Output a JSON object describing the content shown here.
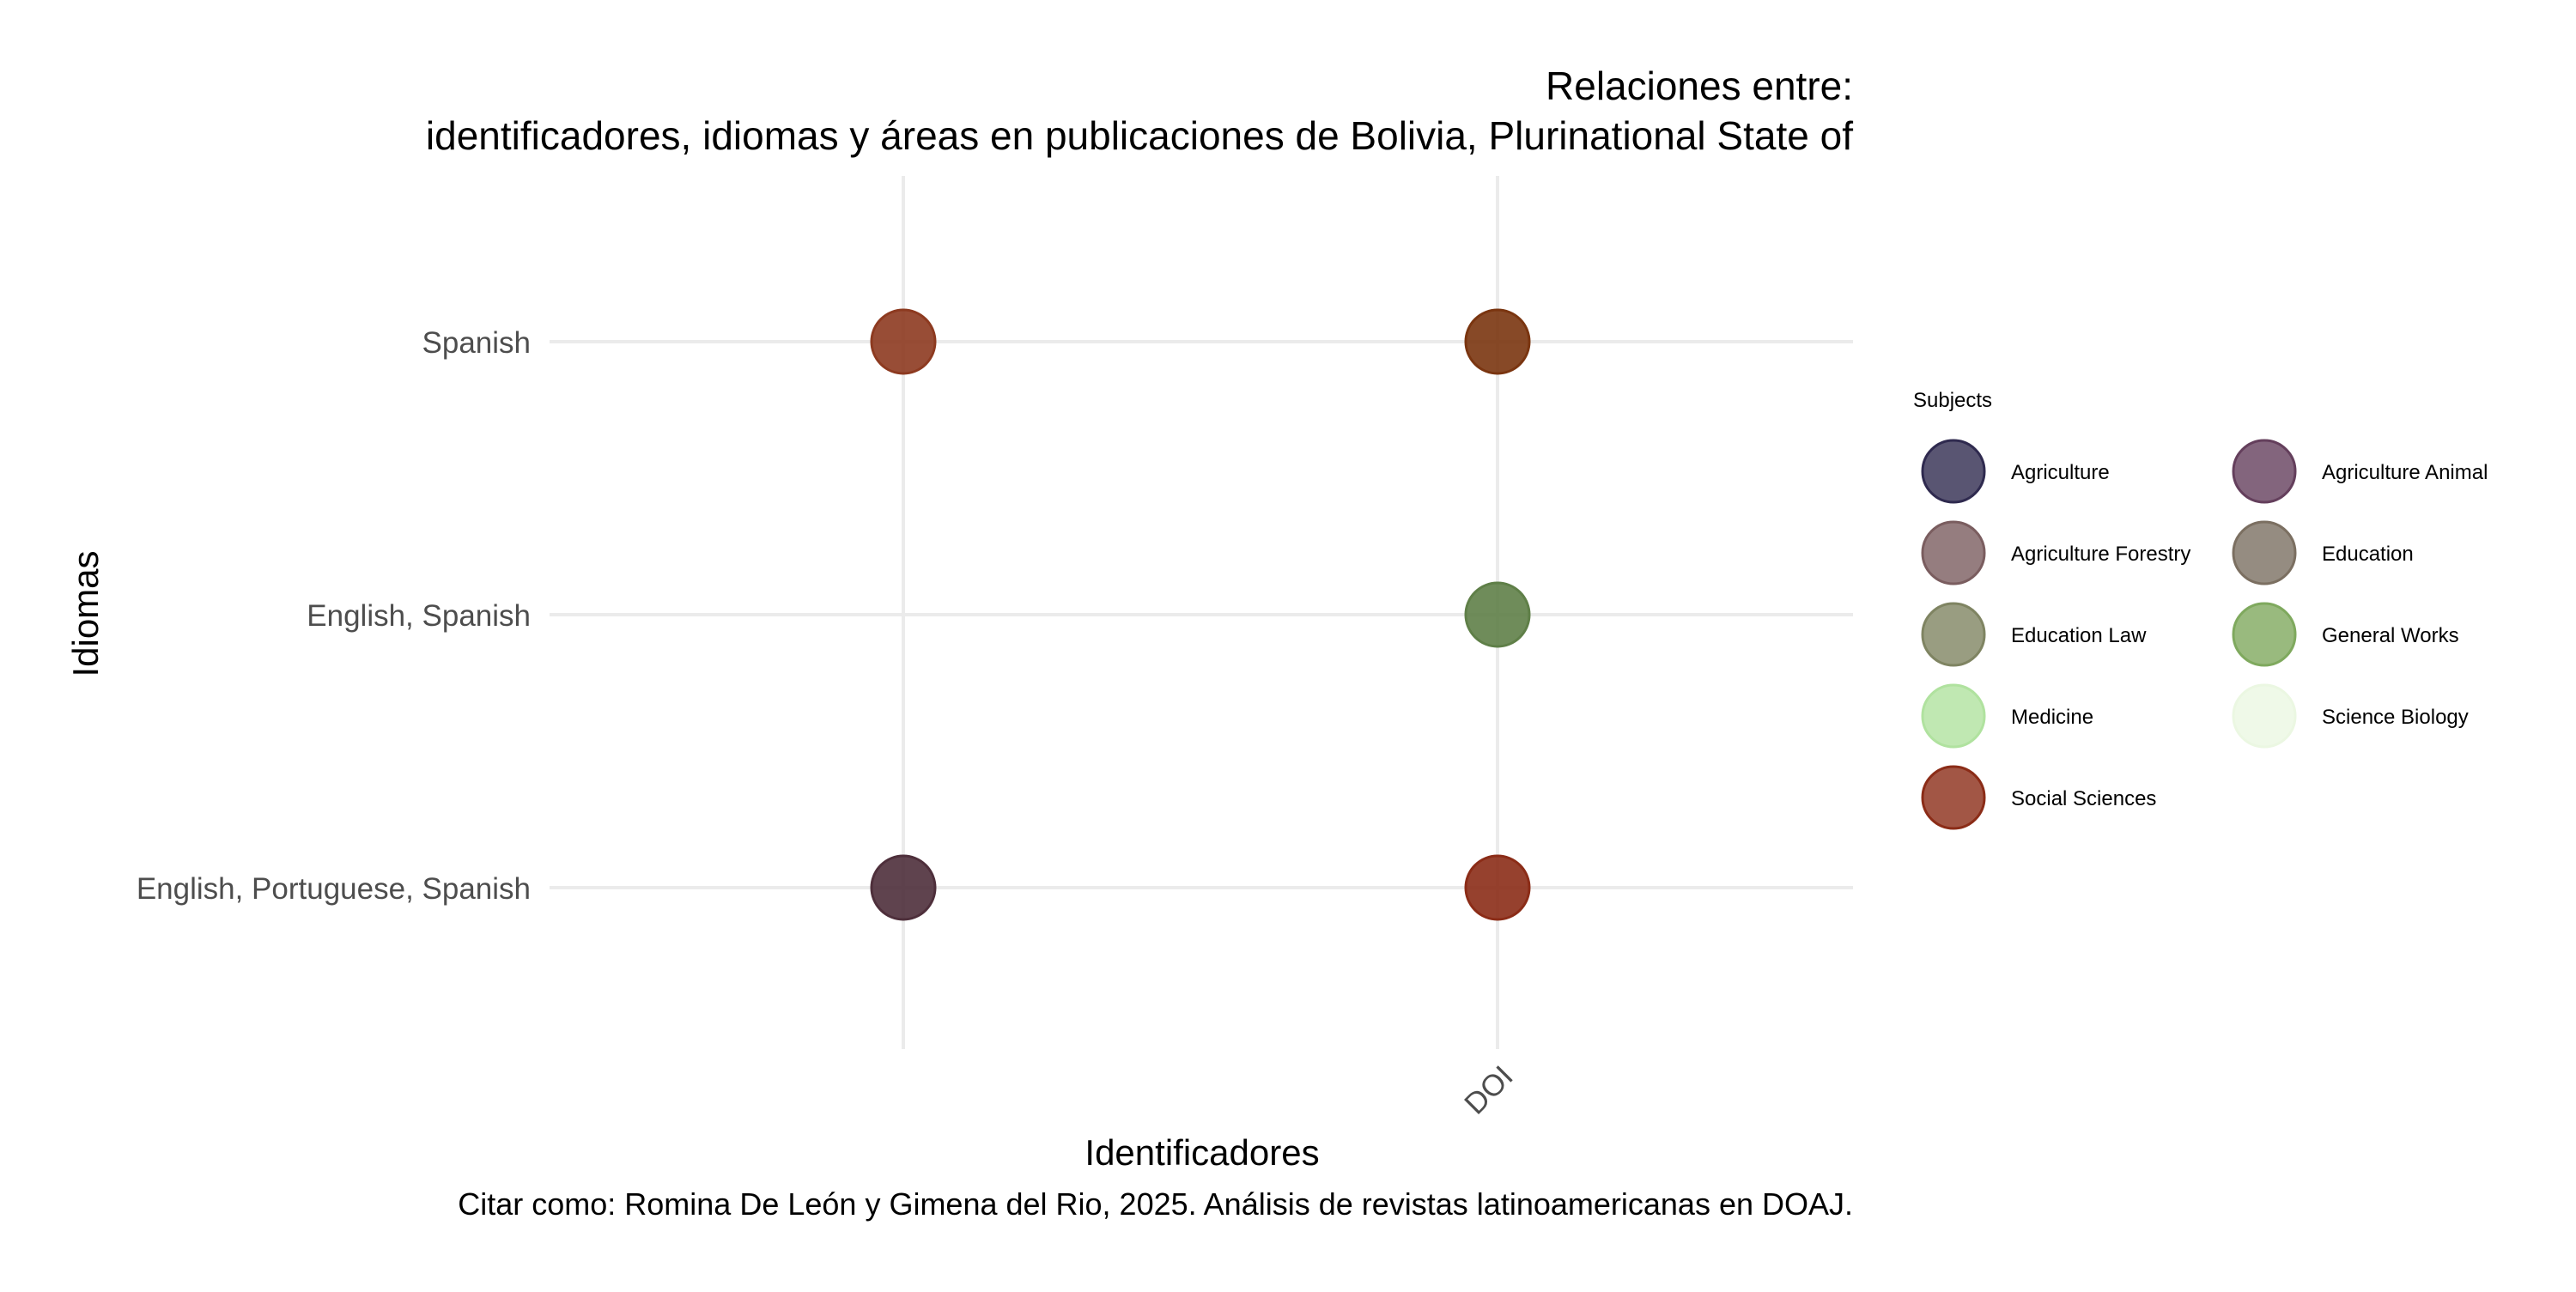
{
  "chart_data": {
    "type": "scatter",
    "title": "Relaciones entre:",
    "subtitle": "identificadores, idiomas y áreas en publicaciones de Bolivia, Plurinational State of",
    "xlabel": "Identificadores",
    "ylabel": "Idiomas",
    "caption": "Citar como: Romina De León y Gimena del Rio, 2025. Análisis de revistas latinoamericanas en DOAJ.",
    "x_categories": [
      "",
      "DOI"
    ],
    "y_categories": [
      "English, Portuguese, Spanish",
      "English, Spanish",
      "Spanish"
    ],
    "grid": true,
    "legend": {
      "title": "Subjects",
      "placement": "right",
      "columns": 2,
      "items": [
        {
          "label": "Agriculture",
          "color": "#2f2a4f"
        },
        {
          "label": "Agriculture Animal",
          "color": "#643f5c"
        },
        {
          "label": "Agriculture Forestry",
          "color": "#7a5d5f"
        },
        {
          "label": "Education",
          "color": "#7b6f61"
        },
        {
          "label": "Education Law",
          "color": "#7f8462"
        },
        {
          "label": "General Works",
          "color": "#7fa95e"
        },
        {
          "label": "Medicine",
          "color": "#b0e29f"
        },
        {
          "label": "Science Biology",
          "color": "#ebf7e2"
        },
        {
          "label": "Social Sciences",
          "color": "#8b2c17"
        }
      ]
    },
    "points": [
      {
        "x": "",
        "y": "Spanish",
        "color": "#8d3a20"
      },
      {
        "x": "DOI",
        "y": "Spanish",
        "color": "#7a3510"
      },
      {
        "x": "DOI",
        "y": "English, Spanish",
        "color": "#5f7f48"
      },
      {
        "x": "",
        "y": "English, Portuguese, Spanish",
        "color": "#4e2f3b"
      },
      {
        "x": "DOI",
        "y": "English, Portuguese, Spanish",
        "color": "#8b2c17"
      }
    ]
  }
}
